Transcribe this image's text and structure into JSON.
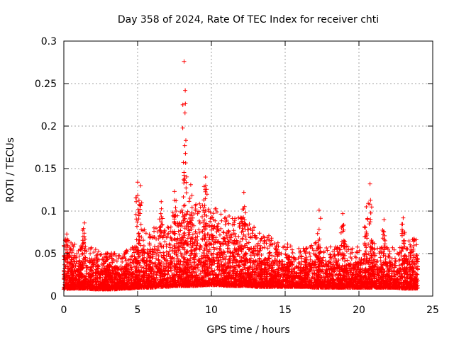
{
  "chart_data": {
    "type": "scatter",
    "title": "Day 358 of 2024, Rate Of TEC Index for receiver chti",
    "xlabel": "GPS time / hours",
    "ylabel": "ROTI / TECUs",
    "xlim": [
      0,
      25
    ],
    "ylim": [
      0,
      0.3
    ],
    "xticks": [
      "0",
      "5",
      "10",
      "15",
      "20",
      "25"
    ],
    "yticks": [
      "0",
      "0.05",
      "0.1",
      "0.15",
      "0.2",
      "0.25",
      "0.3"
    ],
    "grid": true,
    "marker": "+",
    "color": "#ff0000",
    "notable_points": [
      {
        "x": 8.15,
        "y": 0.276
      },
      {
        "x": 8.2,
        "y": 0.177
      },
      {
        "x": 9.6,
        "y": 0.14
      },
      {
        "x": 5.0,
        "y": 0.134
      },
      {
        "x": 5.2,
        "y": 0.13
      },
      {
        "x": 20.75,
        "y": 0.132
      },
      {
        "x": 8.6,
        "y": 0.131
      },
      {
        "x": 7.5,
        "y": 0.123
      },
      {
        "x": 12.2,
        "y": 0.122
      },
      {
        "x": 6.6,
        "y": 0.111
      },
      {
        "x": 20.5,
        "y": 0.105
      },
      {
        "x": 17.3,
        "y": 0.101
      },
      {
        "x": 18.9,
        "y": 0.097
      },
      {
        "x": 23.0,
        "y": 0.092
      },
      {
        "x": 21.7,
        "y": 0.09
      },
      {
        "x": 1.4,
        "y": 0.086
      },
      {
        "x": 0.2,
        "y": 0.073
      }
    ],
    "envelope": {
      "x": [
        0,
        0.5,
        1,
        1.5,
        2,
        2.5,
        3,
        3.5,
        4,
        4.5,
        5,
        5.5,
        6,
        6.5,
        7,
        7.5,
        8,
        8.5,
        9,
        9.5,
        10,
        10.5,
        11,
        11.5,
        12,
        12.5,
        13,
        13.5,
        14,
        14.5,
        15,
        15.5,
        16,
        16.5,
        17,
        17.5,
        18,
        18.5,
        19,
        19.5,
        20,
        20.5,
        21,
        21.5,
        22,
        22.5,
        23,
        23.5,
        24
      ],
      "low": [
        0.008,
        0.009,
        0.009,
        0.009,
        0.008,
        0.008,
        0.008,
        0.008,
        0.009,
        0.009,
        0.01,
        0.01,
        0.01,
        0.011,
        0.011,
        0.012,
        0.012,
        0.012,
        0.012,
        0.013,
        0.013,
        0.013,
        0.012,
        0.012,
        0.012,
        0.012,
        0.011,
        0.011,
        0.011,
        0.011,
        0.011,
        0.011,
        0.011,
        0.011,
        0.01,
        0.01,
        0.01,
        0.01,
        0.01,
        0.01,
        0.01,
        0.01,
        0.01,
        0.01,
        0.01,
        0.01,
        0.009,
        0.009,
        0.009
      ],
      "high": [
        0.045,
        0.045,
        0.04,
        0.045,
        0.04,
        0.035,
        0.035,
        0.035,
        0.035,
        0.04,
        0.05,
        0.055,
        0.055,
        0.06,
        0.06,
        0.065,
        0.07,
        0.07,
        0.075,
        0.075,
        0.075,
        0.07,
        0.07,
        0.065,
        0.065,
        0.06,
        0.055,
        0.05,
        0.05,
        0.045,
        0.045,
        0.04,
        0.04,
        0.04,
        0.045,
        0.04,
        0.04,
        0.04,
        0.045,
        0.04,
        0.04,
        0.045,
        0.045,
        0.04,
        0.04,
        0.04,
        0.045,
        0.05,
        0.045
      ]
    }
  }
}
